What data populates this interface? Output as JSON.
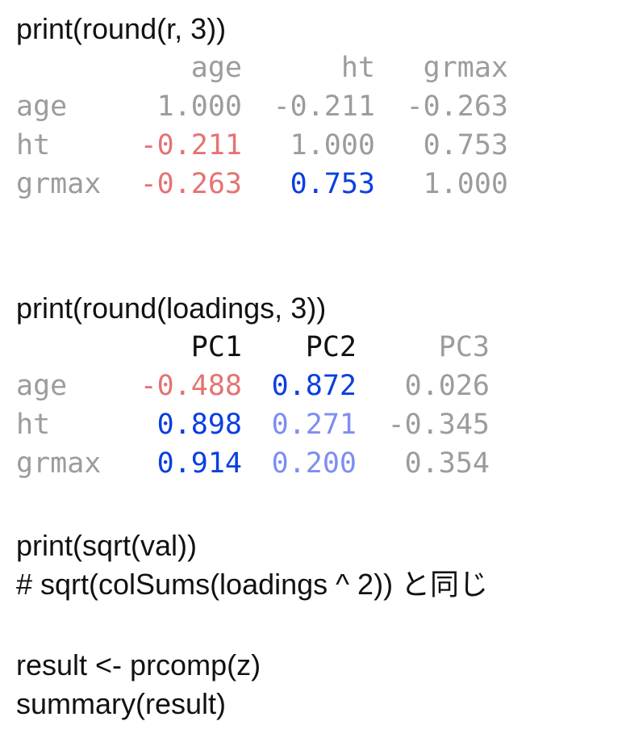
{
  "colors": {
    "gray": "#9c9c9c",
    "black": "#111111",
    "red": "#e57373",
    "blue": "#0a3fe0",
    "light_blue": "#7d8ef0"
  },
  "block1": {
    "command": "print(round(r, 3))",
    "header": [
      {
        "text": "",
        "color": "gray"
      },
      {
        "text": "age",
        "color": "gray"
      },
      {
        "text": "ht",
        "color": "gray"
      },
      {
        "text": "grmax",
        "color": "gray"
      }
    ],
    "rows": [
      [
        {
          "text": "age",
          "color": "gray"
        },
        {
          "text": "1.000",
          "color": "gray"
        },
        {
          "text": "-0.211",
          "color": "gray"
        },
        {
          "text": "-0.263",
          "color": "gray"
        }
      ],
      [
        {
          "text": "ht",
          "color": "gray"
        },
        {
          "text": "-0.211",
          "color": "red"
        },
        {
          "text": "1.000",
          "color": "gray"
        },
        {
          "text": "0.753",
          "color": "gray"
        }
      ],
      [
        {
          "text": "grmax",
          "color": "gray"
        },
        {
          "text": "-0.263",
          "color": "red"
        },
        {
          "text": "0.753",
          "color": "blue"
        },
        {
          "text": "1.000",
          "color": "gray"
        }
      ]
    ]
  },
  "block2": {
    "command": "print(round(loadings, 3))",
    "header": [
      {
        "text": "",
        "color": "gray"
      },
      {
        "text": "PC1",
        "color": "black"
      },
      {
        "text": "PC2",
        "color": "black"
      },
      {
        "text": "PC3",
        "color": "gray"
      }
    ],
    "rows": [
      [
        {
          "text": "age",
          "color": "gray"
        },
        {
          "text": "-0.488",
          "color": "red"
        },
        {
          "text": "0.872",
          "color": "blue"
        },
        {
          "text": "0.026",
          "color": "gray"
        }
      ],
      [
        {
          "text": "ht",
          "color": "gray"
        },
        {
          "text": "0.898",
          "color": "blue"
        },
        {
          "text": "0.271",
          "color": "light_blue"
        },
        {
          "text": "-0.345",
          "color": "gray"
        }
      ],
      [
        {
          "text": "grmax",
          "color": "gray"
        },
        {
          "text": "0.914",
          "color": "blue"
        },
        {
          "text": "0.200",
          "color": "light_blue"
        },
        {
          "text": "0.354",
          "color": "gray"
        }
      ]
    ]
  },
  "block3": {
    "line1": "print(sqrt(val))",
    "line2": "# sqrt(colSums(loadings ^ 2)) と同じ"
  },
  "block4": {
    "line1": "result <- prcomp(z)",
    "line2": "summary(result)"
  }
}
